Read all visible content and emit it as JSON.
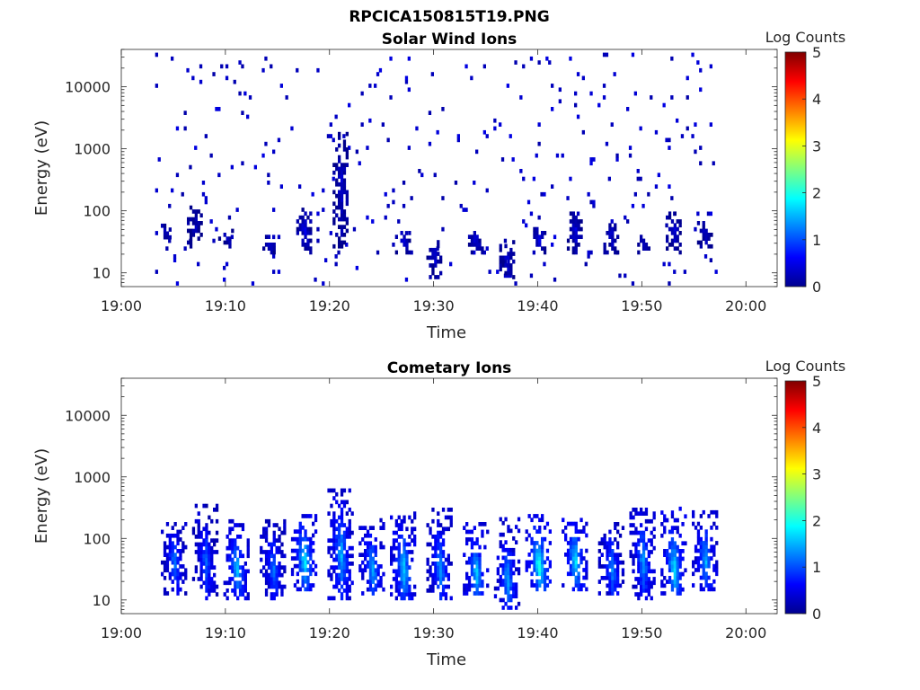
{
  "figure": {
    "title": "RPCICA150815T19.PNG"
  },
  "chart_data": [
    {
      "type": "heatmap",
      "title": "Solar Wind Ions",
      "xlabel": "Time",
      "ylabel": "Energy (eV)",
      "x_ticks": [
        "19:00",
        "19:10",
        "19:20",
        "19:30",
        "19:40",
        "19:50",
        "20:00"
      ],
      "xlim": [
        "19:00",
        "20:03"
      ],
      "y_scale": "log",
      "y_ticks": [
        "10",
        "100",
        "1000",
        "10000"
      ],
      "ylim": [
        6,
        40000
      ],
      "colorbar": {
        "label": "Log Counts",
        "ticks": [
          "0",
          "1",
          "2",
          "3",
          "4",
          "5"
        ],
        "range": [
          0,
          5
        ],
        "colormap": "jet"
      },
      "data_extent": {
        "start": "19:03",
        "end": "19:57",
        "typical_log_counts": [
          0,
          0.5
        ]
      },
      "bursts": [
        {
          "time": "19:04",
          "energy_range_eV": [
            35,
            60
          ],
          "log_counts": 0.4
        },
        {
          "time": "19:07",
          "energy_range_eV": [
            25,
            120
          ],
          "log_counts": 0.3
        },
        {
          "time": "19:10",
          "energy_range_eV": [
            25,
            45
          ],
          "log_counts": 0.3
        },
        {
          "time": "19:14",
          "energy_range_eV": [
            20,
            40
          ],
          "log_counts": 0.4
        },
        {
          "time": "19:17.5",
          "energy_range_eV": [
            20,
            110
          ],
          "log_counts": 0.5
        },
        {
          "time": "19:21",
          "energy_range_eV": [
            25,
            2000
          ],
          "log_counts": 0.4
        },
        {
          "time": "19:27",
          "energy_range_eV": [
            20,
            45
          ],
          "log_counts": 0.5
        },
        {
          "time": "19:30",
          "energy_range_eV": [
            8,
            30
          ],
          "log_counts": 0.4
        },
        {
          "time": "19:34",
          "energy_range_eV": [
            20,
            45
          ],
          "log_counts": 0.5
        },
        {
          "time": "19:37",
          "energy_range_eV": [
            8,
            30
          ],
          "log_counts": 0.5
        },
        {
          "time": "19:40",
          "energy_range_eV": [
            20,
            50
          ],
          "log_counts": 0.6
        },
        {
          "time": "19:43.5",
          "energy_range_eV": [
            20,
            90
          ],
          "log_counts": 0.5
        },
        {
          "time": "19:47",
          "energy_range_eV": [
            20,
            60
          ],
          "log_counts": 0.4
        },
        {
          "time": "19:50",
          "energy_range_eV": [
            20,
            40
          ],
          "log_counts": 0.4
        },
        {
          "time": "19:53",
          "energy_range_eV": [
            20,
            90
          ],
          "log_counts": 0.5
        },
        {
          "time": "19:56",
          "energy_range_eV": [
            25,
            60
          ],
          "log_counts": 0.4
        }
      ]
    },
    {
      "type": "heatmap",
      "title": "Cometary Ions",
      "xlabel": "Time",
      "ylabel": "Energy (eV)",
      "x_ticks": [
        "19:00",
        "19:10",
        "19:20",
        "19:30",
        "19:40",
        "19:50",
        "20:00"
      ],
      "xlim": [
        "19:00",
        "20:03"
      ],
      "y_scale": "log",
      "y_ticks": [
        "10",
        "100",
        "1000",
        "10000"
      ],
      "ylim": [
        6,
        40000
      ],
      "colorbar": {
        "label": "Log Counts",
        "ticks": [
          "0",
          "1",
          "2",
          "3",
          "4",
          "5"
        ],
        "range": [
          0,
          5
        ],
        "colormap": "jet"
      },
      "data_extent": {
        "start": "19:03",
        "end": "19:57"
      },
      "bursts": [
        {
          "time": "19:05",
          "energy_range_eV": [
            12,
            180
          ],
          "peak_energy_eV": 40,
          "peak_log_counts": 1.3
        },
        {
          "time": "19:08",
          "energy_range_eV": [
            10,
            350
          ],
          "peak_energy_eV": 40,
          "peak_log_counts": 1.2
        },
        {
          "time": "19:11",
          "energy_range_eV": [
            10,
            180
          ],
          "peak_energy_eV": 30,
          "peak_log_counts": 1.7
        },
        {
          "time": "19:14.5",
          "energy_range_eV": [
            10,
            200
          ],
          "peak_energy_eV": 30,
          "peak_log_counts": 1.3
        },
        {
          "time": "19:17.5",
          "energy_range_eV": [
            14,
            220
          ],
          "peak_energy_eV": 40,
          "peak_log_counts": 2.0
        },
        {
          "time": "19:21",
          "energy_range_eV": [
            10,
            600
          ],
          "peak_energy_eV": 50,
          "peak_log_counts": 1.6
        },
        {
          "time": "19:24",
          "energy_range_eV": [
            12,
            200
          ],
          "peak_energy_eV": 30,
          "peak_log_counts": 1.6
        },
        {
          "time": "19:27",
          "energy_range_eV": [
            10,
            250
          ],
          "peak_energy_eV": 30,
          "peak_log_counts": 1.8
        },
        {
          "time": "19:30.5",
          "energy_range_eV": [
            10,
            300
          ],
          "peak_energy_eV": 30,
          "peak_log_counts": 1.5
        },
        {
          "time": "19:34",
          "energy_range_eV": [
            12,
            180
          ],
          "peak_energy_eV": 25,
          "peak_log_counts": 1.8
        },
        {
          "time": "19:37",
          "energy_range_eV": [
            7,
            200
          ],
          "peak_energy_eV": 20,
          "peak_log_counts": 1.5
        },
        {
          "time": "19:40",
          "energy_range_eV": [
            14,
            220
          ],
          "peak_energy_eV": 35,
          "peak_log_counts": 2.2
        },
        {
          "time": "19:43.5",
          "energy_range_eV": [
            14,
            200
          ],
          "peak_energy_eV": 40,
          "peak_log_counts": 1.9
        },
        {
          "time": "19:47",
          "energy_range_eV": [
            12,
            200
          ],
          "peak_energy_eV": 30,
          "peak_log_counts": 1.4
        },
        {
          "time": "19:50",
          "energy_range_eV": [
            10,
            300
          ],
          "peak_energy_eV": 40,
          "peak_log_counts": 1.5
        },
        {
          "time": "19:53",
          "energy_range_eV": [
            12,
            300
          ],
          "peak_energy_eV": 30,
          "peak_log_counts": 1.9
        },
        {
          "time": "19:56",
          "energy_range_eV": [
            14,
            250
          ],
          "peak_energy_eV": 40,
          "peak_log_counts": 1.6
        }
      ]
    }
  ]
}
